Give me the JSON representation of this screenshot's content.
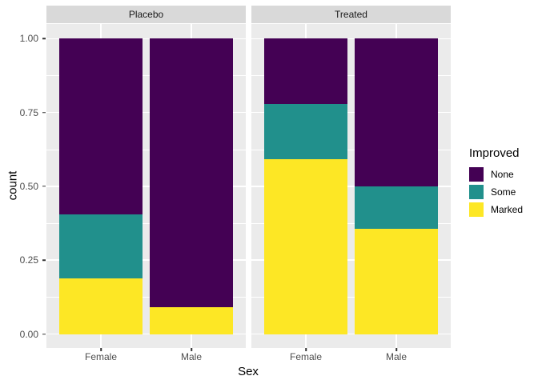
{
  "theme": {
    "background": "#FFFFFF",
    "panel_bg": "#EBEBEB",
    "strip_bg": "#D9D9D9",
    "grid_color": "#FFFFFF",
    "strip_text_color": "#1A1A1A",
    "axis_text_color": "#4D4D4D",
    "tick_mark_color": "#333333",
    "title_text_color": "#000000"
  },
  "chart_data": {
    "type": "bar",
    "stacking": "fill",
    "title": "",
    "xlabel": "Sex",
    "ylabel": "count",
    "grid": true,
    "legend": {
      "title": "Improved",
      "position": "right",
      "entries": [
        {
          "label": "None",
          "color": "#440154"
        },
        {
          "label": "Some",
          "color": "#21908C"
        },
        {
          "label": "Marked",
          "color": "#FDE725"
        }
      ]
    },
    "y_axis": {
      "range": [
        0,
        1
      ],
      "ticks": [
        {
          "label": "1.00",
          "value": 1.0
        },
        {
          "label": "0.75",
          "value": 0.75
        },
        {
          "label": "0.50",
          "value": 0.5
        },
        {
          "label": "0.25",
          "value": 0.25
        },
        {
          "label": "0.00",
          "value": 0.0
        }
      ],
      "minor_ticks": [
        0.125,
        0.375,
        0.625,
        0.875
      ]
    },
    "facets": [
      {
        "label": "Placebo",
        "categories": [
          "Female",
          "Male"
        ],
        "series": [
          {
            "name": "None",
            "color": "#440154",
            "values": [
              0.5938,
              0.9091
            ]
          },
          {
            "name": "Some",
            "color": "#21908C",
            "values": [
              0.2187,
              0.0
            ]
          },
          {
            "name": "Marked",
            "color": "#FDE725",
            "values": [
              0.1875,
              0.0909
            ]
          }
        ]
      },
      {
        "label": "Treated",
        "categories": [
          "Female",
          "Male"
        ],
        "series": [
          {
            "name": "None",
            "color": "#440154",
            "values": [
              0.2222,
              0.5
            ]
          },
          {
            "name": "Some",
            "color": "#21908C",
            "values": [
              0.1852,
              0.1429
            ]
          },
          {
            "name": "Marked",
            "color": "#FDE725",
            "values": [
              0.5926,
              0.3571
            ]
          }
        ]
      }
    ]
  }
}
